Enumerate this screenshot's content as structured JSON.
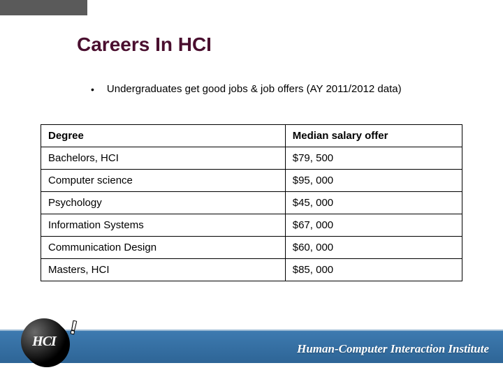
{
  "slide": {
    "title": "Careers In HCI",
    "bullet": "Undergraduates get good jobs & job offers (AY 2011/2012 data)"
  },
  "table": {
    "columns": [
      "Degree",
      "Median salary offer"
    ],
    "rows": [
      [
        "Bachelors, HCI",
        "$79, 500"
      ],
      [
        "Computer science",
        "$95, 000"
      ],
      [
        "Psychology",
        "$45, 000"
      ],
      [
        "Information Systems",
        "$67, 000"
      ],
      [
        "Communication Design",
        "$60, 000"
      ],
      [
        "Masters, HCI",
        "$85, 000"
      ]
    ],
    "col_widths": [
      "58%",
      "42%"
    ],
    "border_color": "#000000"
  },
  "footer": {
    "institute": "Human-Computer Interaction Institute",
    "bar_gradient_top": "#3d7ab0",
    "bar_gradient_bottom": "#2e6596",
    "text_color": "#ffffff"
  },
  "logo": {
    "text": "HCI",
    "bang": "!"
  },
  "colors": {
    "title_color": "#4a0f2f",
    "top_bar": "#5a5a5a",
    "background": "#ffffff"
  }
}
